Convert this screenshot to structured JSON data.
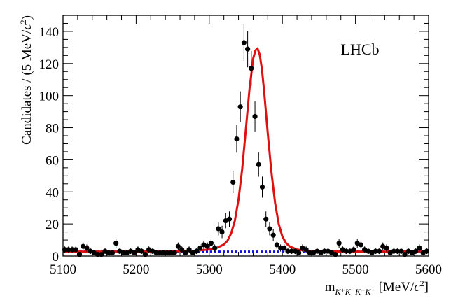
{
  "chart_data": {
    "type": "scatter",
    "experiment_label": "LHCb",
    "ylabel": {
      "prefix": "Candidates / (5 MeV/",
      "var": "c",
      "exp": "2",
      "suffix": ")"
    },
    "xlabel": {
      "var": "m",
      "sub": "K⁺K⁻K⁺K⁻",
      "unit_prefix": " [MeV/",
      "unit_var": "c",
      "unit_exp": "2",
      "unit_suffix": "]"
    },
    "xlim": [
      5100,
      5600
    ],
    "ylim": [
      0,
      150
    ],
    "x_ticks": [
      5100,
      5200,
      5300,
      5400,
      5500,
      5600
    ],
    "y_ticks": [
      0,
      20,
      40,
      60,
      80,
      100,
      120,
      140
    ],
    "colors": {
      "data": "#000000",
      "total_fit": "#e01010",
      "background": "#1010e0"
    },
    "series": [
      {
        "type": "scatter",
        "with_errors": true,
        "x": [
          5102.5,
          5107.5,
          5112.5,
          5117.5,
          5122.5,
          5127.5,
          5132.5,
          5137.5,
          5142.5,
          5147.5,
          5152.5,
          5157.5,
          5162.5,
          5167.5,
          5172.5,
          5177.5,
          5182.5,
          5187.5,
          5192.5,
          5197.5,
          5202.5,
          5207.5,
          5212.5,
          5217.5,
          5222.5,
          5227.5,
          5232.5,
          5237.5,
          5242.5,
          5247.5,
          5252.5,
          5257.5,
          5262.5,
          5267.5,
          5272.5,
          5277.5,
          5282.5,
          5287.5,
          5292.5,
          5297.5,
          5302.5,
          5307.5,
          5312.5,
          5317.5,
          5322.5,
          5327.5,
          5332.5,
          5337.5,
          5342.5,
          5347.5,
          5352.5,
          5357.5,
          5362.5,
          5367.5,
          5372.5,
          5377.5,
          5382.5,
          5387.5,
          5392.5,
          5397.5,
          5402.5,
          5407.5,
          5412.5,
          5417.5,
          5422.5,
          5427.5,
          5432.5,
          5437.5,
          5442.5,
          5447.5,
          5452.5,
          5457.5,
          5462.5,
          5467.5,
          5472.5,
          5477.5,
          5482.5,
          5487.5,
          5492.5,
          5497.5,
          5502.5,
          5507.5,
          5512.5,
          5517.5,
          5522.5,
          5527.5,
          5532.5,
          5537.5,
          5542.5,
          5547.5,
          5552.5,
          5557.5,
          5562.5,
          5567.5,
          5572.5,
          5577.5,
          5582.5,
          5587.5,
          5592.5,
          5597.5
        ],
        "y": [
          4,
          4,
          4,
          4,
          1,
          6,
          5,
          3,
          2,
          1,
          1,
          3,
          2,
          2,
          8,
          3,
          2,
          2,
          3,
          2,
          4,
          3,
          1,
          4,
          3,
          2,
          2,
          2,
          2,
          2,
          2,
          6,
          4,
          2,
          4,
          2,
          3,
          5,
          7,
          6,
          8,
          5,
          17,
          15,
          22,
          23,
          46,
          73,
          93,
          133,
          129,
          117,
          87,
          57,
          43,
          23,
          17,
          13,
          7,
          5,
          5,
          3,
          3,
          3,
          2,
          5,
          4,
          2,
          2,
          3,
          2,
          3,
          3,
          2,
          1,
          8,
          4,
          3,
          3,
          4,
          8,
          7,
          4,
          3,
          2,
          3,
          3,
          6,
          5,
          2,
          3,
          3,
          3,
          1,
          3,
          2,
          3,
          5,
          2,
          3
        ]
      },
      {
        "type": "line",
        "style": "solid",
        "role": "total_fit",
        "x": [
          5100,
          5150,
          5200,
          5250,
          5280,
          5300,
          5310,
          5320,
          5325,
          5330,
          5335,
          5340,
          5345,
          5350,
          5355,
          5360,
          5363,
          5366,
          5369,
          5372,
          5375,
          5380,
          5385,
          5390,
          5395,
          5400,
          5405,
          5410,
          5420,
          5430,
          5450,
          5500,
          5550,
          5600
        ],
        "y": [
          2.8,
          2.8,
          2.8,
          2.9,
          3.3,
          4.1,
          5.0,
          7.2,
          9.6,
          14.2,
          22.0,
          35.2,
          54.1,
          78.8,
          104.1,
          122.9,
          128.1,
          129.4,
          125.5,
          116.5,
          102.8,
          76.6,
          52.4,
          33.2,
          20.0,
          12.1,
          8.1,
          6.0,
          4.1,
          3.4,
          2.9,
          2.8,
          2.8,
          2.8
        ]
      },
      {
        "type": "line",
        "style": "dotted",
        "role": "background",
        "x": [
          5100,
          5600
        ],
        "y": [
          2.8,
          2.8
        ]
      }
    ]
  }
}
